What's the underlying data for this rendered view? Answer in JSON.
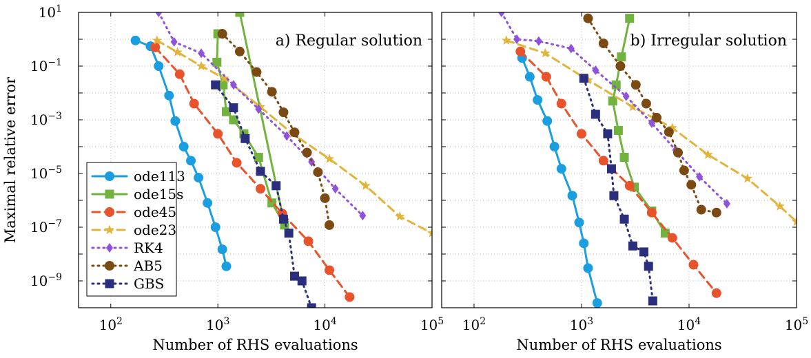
{
  "chart_data": [
    {
      "type": "line",
      "panel_title": "a) Regular solution",
      "xlabel": "Number of RHS evaluations",
      "ylabel": "Maximal relative error",
      "x_scale": "log",
      "y_scale": "log",
      "xlim": [
        50,
        100000
      ],
      "ylim": [
        1e-10,
        10
      ],
      "x_tick_labels": [
        {
          "base": "10",
          "exp": "2",
          "value": 100
        },
        {
          "base": "10",
          "exp": "3",
          "value": 1000
        },
        {
          "base": "10",
          "exp": "4",
          "value": 10000
        },
        {
          "base": "10",
          "exp": "5",
          "value": 100000
        }
      ],
      "y_tick_labels": [
        {
          "base": "10",
          "exp": "1",
          "value": 10
        },
        {
          "base": "10",
          "exp": "−1",
          "value": 0.1
        },
        {
          "base": "10",
          "exp": "−3",
          "value": 0.001
        },
        {
          "base": "10",
          "exp": "−5",
          "value": 1e-05
        },
        {
          "base": "10",
          "exp": "−7",
          "value": 1e-07
        },
        {
          "base": "10",
          "exp": "−9",
          "value": 1e-09
        }
      ],
      "grid": true,
      "legend": "bottom-left",
      "series": [
        {
          "name": "ode113",
          "color": "#1b9ee0",
          "marker": "circle",
          "line": "solid",
          "x": [
            170,
            235,
            280,
            350,
            400,
            480,
            560,
            660,
            800,
            950,
            1100,
            1200
          ],
          "y": [
            0.9,
            0.55,
            0.1,
            0.008,
            0.0009,
            0.0001,
            3e-05,
            7e-06,
            8e-07,
            1e-07,
            1.5e-08,
            3.5e-09
          ]
        },
        {
          "name": "ode15s",
          "color": "#72b23e",
          "marker": "square",
          "line": "solid",
          "x": [
            1000,
            980,
            1120,
            1200,
            1400,
            1750,
            2400,
            3200,
            4200,
            1600
          ],
          "y": [
            1.6,
            0.14,
            0.02,
            0.002,
            0.001,
            0.0003,
            4e-05,
            8e-07,
            1.2e-07,
            10
          ]
        },
        {
          "name": "ode45",
          "color": "#e8532c",
          "marker": "circle",
          "line": "dashed",
          "x": [
            260,
            440,
            600,
            1000,
            1500,
            2500,
            4000,
            7000,
            11000,
            17000
          ],
          "y": [
            0.5,
            0.05,
            0.004,
            0.0003,
            2.5e-05,
            2.7e-06,
            3.2e-07,
            3e-08,
            2.5e-09,
            2.5e-10
          ]
        },
        {
          "name": "ode23",
          "color": "#e3b43b",
          "marker": "star",
          "line": "dashed",
          "x": [
            270,
            420,
            700,
            1150,
            2500,
            5000,
            11000,
            24000,
            50000,
            100000
          ],
          "y": [
            0.9,
            0.33,
            0.1,
            0.035,
            0.003,
            0.0003,
            3.5e-05,
            3.5e-06,
            2.5e-07,
            6e-08
          ]
        },
        {
          "name": "RK4",
          "color": "#8e52db",
          "marker": "diamond",
          "line": "dotted",
          "x": [
            280,
            390,
            700,
            1400,
            2400,
            4400,
            7500,
            12500,
            22500
          ],
          "y": [
            10,
            0.8,
            0.3,
            0.02,
            0.0025,
            0.00025,
            2.7e-05,
            2.7e-06,
            2.7e-07
          ]
        },
        {
          "name": "AB5",
          "color": "#7b4a12",
          "marker": "circle",
          "line": "dotted",
          "x": [
            1100,
            1600,
            2300,
            3200,
            4100,
            5200,
            6800,
            8600,
            10000,
            11000
          ],
          "y": [
            1.6,
            0.35,
            0.06,
            0.011,
            0.0019,
            0.00034,
            6e-05,
            1.12e-05,
            1.2e-06,
            1.2e-07
          ]
        },
        {
          "name": "GBS",
          "color": "#2a2e7c",
          "marker": "square",
          "line": "dotted",
          "x": [
            950,
            1400,
            1800,
            2500,
            3500,
            4100,
            4600,
            5200,
            6100,
            7500
          ],
          "y": [
            0.02,
            0.0028,
            0.0002,
            1.2e-05,
            3.5e-06,
            2e-07,
            6e-08,
            1.5e-09,
            1e-09,
            1e-10
          ]
        }
      ]
    },
    {
      "type": "line",
      "panel_title": "b) Irregular solution",
      "xlabel": "Number of RHS evaluations",
      "ylabel": "",
      "x_scale": "log",
      "y_scale": "log",
      "xlim": [
        50,
        100000
      ],
      "ylim": [
        1e-10,
        10
      ],
      "x_tick_labels": [
        {
          "base": "10",
          "exp": "2",
          "value": 100
        },
        {
          "base": "10",
          "exp": "3",
          "value": 1000
        },
        {
          "base": "10",
          "exp": "4",
          "value": 10000
        },
        {
          "base": "10",
          "exp": "5",
          "value": 100000
        }
      ],
      "grid": true,
      "series": [
        {
          "name": "ode113",
          "color": "#1b9ee0",
          "marker": "circle",
          "line": "solid",
          "x": [
            280,
            330,
            390,
            480,
            560,
            650,
            820,
            950,
            1050,
            1150,
            1400
          ],
          "y": [
            0.2,
            0.04,
            0.0055,
            0.0009,
            0.0001,
            1.5e-05,
            1.5e-06,
            1.5e-07,
            2.5e-08,
            3e-09,
            1.5e-10
          ]
        },
        {
          "name": "ode15s",
          "color": "#72b23e",
          "marker": "square",
          "line": "solid",
          "x": [
            2800,
            2350,
            2100,
            1950,
            2200,
            2500,
            3100,
            4500,
            6000
          ],
          "y": [
            6,
            0.22,
            0.02,
            0.005,
            0.0004,
            4e-05,
            3.1e-06,
            4e-07,
            6e-08
          ]
        },
        {
          "name": "ode45",
          "color": "#e8532c",
          "marker": "circle",
          "line": "dashed",
          "x": [
            270,
            470,
            650,
            1000,
            1600,
            2800,
            4500,
            7000,
            11000,
            18000
          ],
          "y": [
            0.35,
            0.04,
            0.004,
            0.0003,
            3e-05,
            3.5e-06,
            3.5e-07,
            4e-08,
            4e-09,
            3.5e-10
          ]
        },
        {
          "name": "ode23",
          "color": "#e3b43b",
          "marker": "star",
          "line": "dashed",
          "x": [
            200,
            460,
            1150,
            3000,
            7000,
            15000,
            35000,
            70000,
            100000
          ],
          "y": [
            0.9,
            0.3,
            0.03,
            0.003,
            0.0005,
            5e-05,
            6.5e-06,
            6e-07,
            1.6e-07
          ]
        },
        {
          "name": "RK4",
          "color": "#8e52db",
          "marker": "diamond",
          "line": "dotted",
          "x": [
            180,
            250,
            400,
            800,
            1350,
            2600,
            4500,
            7500,
            12500,
            22500
          ],
          "y": [
            10,
            1,
            0.85,
            0.45,
            0.07,
            0.0075,
            0.00075,
            7.5e-05,
            7.5e-06,
            7.5e-07
          ]
        },
        {
          "name": "AB5",
          "color": "#7b4a12",
          "marker": "circle",
          "line": "dotted",
          "x": [
            1150,
            1600,
            2300,
            3200,
            4000,
            5000,
            6500,
            7900,
            9000,
            10500,
            13000,
            18000
          ],
          "y": [
            6,
            0.7,
            0.1,
            0.02,
            0.004,
            0.0012,
            0.00035,
            6e-05,
            1.3e-05,
            3.8e-06,
            4.5e-07,
            3.5e-07
          ]
        },
        {
          "name": "GBS",
          "color": "#2a2e7c",
          "marker": "square",
          "line": "dotted",
          "x": [
            1050,
            1350,
            1750,
            1900,
            2000,
            2500,
            3000,
            3800,
            4200,
            4600
          ],
          "y": [
            0.035,
            0.0016,
            0.0003,
            1.5e-05,
            1.5e-06,
            2e-07,
            2e-08,
            1.2e-08,
            3.5e-09,
            1.8e-10
          ]
        }
      ]
    }
  ]
}
